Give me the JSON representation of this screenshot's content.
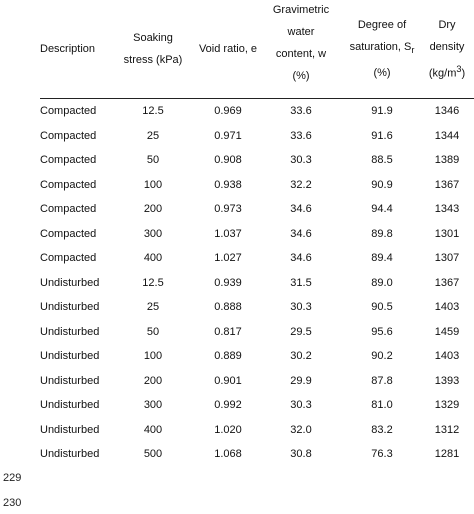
{
  "table": {
    "headers": {
      "description": [
        "Description"
      ],
      "soaking_stress": [
        "Soaking",
        "stress (kPa)"
      ],
      "void_ratio": [
        "Void ratio, e"
      ],
      "water_content": [
        "Gravimetric",
        "water",
        "content, w",
        "(%)"
      ],
      "saturation": [
        "Degree of",
        "saturation, S",
        "(%)"
      ],
      "saturation_sub": "r",
      "dry_density": [
        "Dry density",
        "(kg/m",
        ")"
      ],
      "dry_density_sup": "3"
    },
    "rows": [
      [
        "Compacted",
        "12.5",
        "0.969",
        "33.6",
        "91.9",
        "1346"
      ],
      [
        "Compacted",
        "25",
        "0.971",
        "33.6",
        "91.6",
        "1344"
      ],
      [
        "Compacted",
        "50",
        "0.908",
        "30.3",
        "88.5",
        "1389"
      ],
      [
        "Compacted",
        "100",
        "0.938",
        "32.2",
        "90.9",
        "1367"
      ],
      [
        "Compacted",
        "200",
        "0.973",
        "34.6",
        "94.4",
        "1343"
      ],
      [
        "Compacted",
        "300",
        "1.037",
        "34.6",
        "89.8",
        "1301"
      ],
      [
        "Compacted",
        "400",
        "1.027",
        "34.6",
        "89.4",
        "1307"
      ],
      [
        "Undisturbed",
        "12.5",
        "0.939",
        "31.5",
        "89.0",
        "1367"
      ],
      [
        "Undisturbed",
        "25",
        "0.888",
        "30.3",
        "90.5",
        "1403"
      ],
      [
        "Undisturbed",
        "50",
        "0.817",
        "29.5",
        "95.6",
        "1459"
      ],
      [
        "Undisturbed",
        "100",
        "0.889",
        "30.2",
        "90.2",
        "1403"
      ],
      [
        "Undisturbed",
        "200",
        "0.901",
        "29.9",
        "87.8",
        "1393"
      ],
      [
        "Undisturbed",
        "300",
        "0.992",
        "30.3",
        "81.0",
        "1329"
      ],
      [
        "Undisturbed",
        "400",
        "1.020",
        "32.0",
        "83.2",
        "1312"
      ],
      [
        "Undisturbed",
        "500",
        "1.068",
        "30.8",
        "76.3",
        "1281"
      ]
    ]
  },
  "line_numbers": [
    "229",
    "230"
  ]
}
